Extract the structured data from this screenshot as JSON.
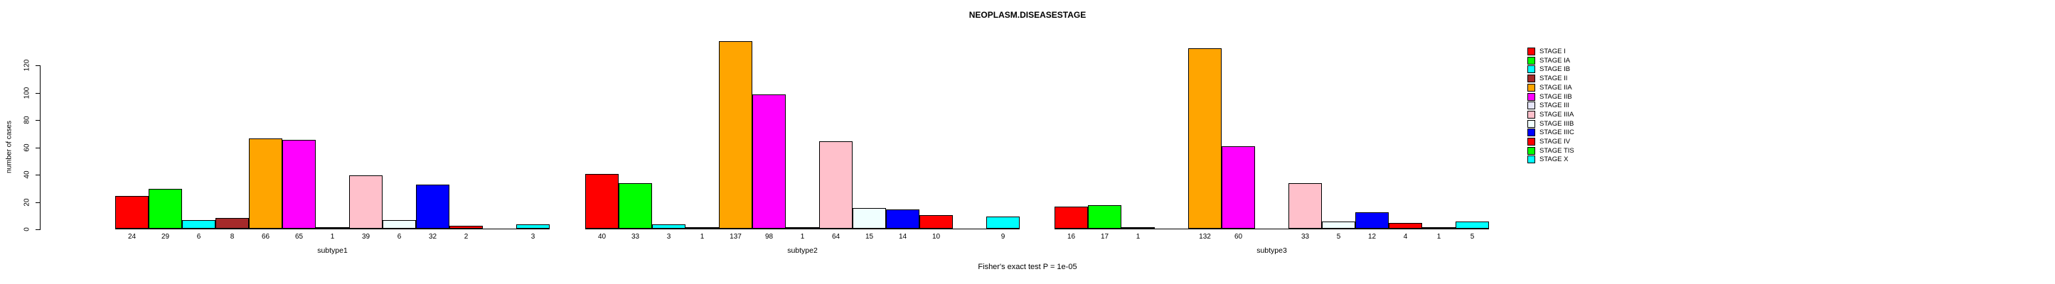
{
  "title": "NEOPLASM.DISEASESTAGE",
  "caption": "Fisher's exact test P = 1e-05",
  "chart_data": {
    "type": "bar",
    "title": "NEOPLASM.DISEASESTAGE",
    "xlabel": "",
    "ylabel": "number of cases",
    "ylim": [
      0,
      120
    ],
    "yticks": [
      0,
      20,
      40,
      60,
      80,
      100,
      120
    ],
    "grid": false,
    "legend_position": "right",
    "legend_entries": [
      {
        "label": "STAGE I",
        "color": "#FF0000"
      },
      {
        "label": "STAGE IA",
        "color": "#00FF00"
      },
      {
        "label": "STAGE IB",
        "color": "#00FFFF"
      },
      {
        "label": "STAGE II",
        "color": "#A52A2A"
      },
      {
        "label": "STAGE IIA",
        "color": "#FFA500"
      },
      {
        "label": "STAGE IIB",
        "color": "#FF00FF"
      },
      {
        "label": "STAGE III",
        "color": "#E6E6FA"
      },
      {
        "label": "STAGE IIIA",
        "color": "#FFC0CB"
      },
      {
        "label": "STAGE IIIB",
        "color": "#F0FFFF"
      },
      {
        "label": "STAGE IIIC",
        "color": "#0000FF"
      },
      {
        "label": "STAGE IV",
        "color": "#FF0000"
      },
      {
        "label": "STAGE TIS",
        "color": "#00FF00"
      },
      {
        "label": "STAGE X",
        "color": "#00FFFF"
      }
    ],
    "groups": [
      {
        "label": "subtype1",
        "values": [
          24,
          29,
          6,
          8,
          66,
          65,
          1,
          39,
          6,
          32,
          2,
          0,
          3
        ]
      },
      {
        "label": "subtype2",
        "values": [
          40,
          33,
          3,
          1,
          137,
          98,
          1,
          64,
          15,
          14,
          10,
          0,
          9
        ]
      },
      {
        "label": "subtype3",
        "values": [
          16,
          17,
          1,
          0,
          132,
          60,
          0,
          33,
          5,
          12,
          4,
          1,
          5
        ]
      }
    ]
  }
}
